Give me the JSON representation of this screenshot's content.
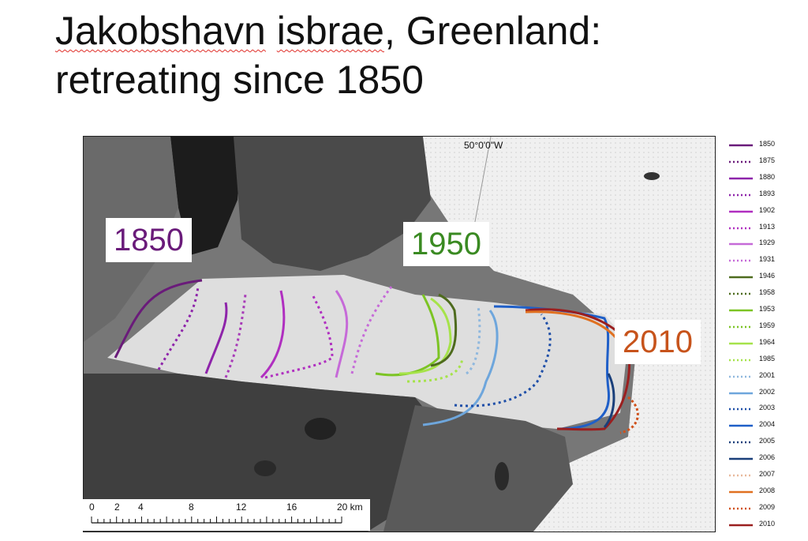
{
  "title": {
    "word1": "Jakobshavn",
    "word2": "isbrae",
    "rest_line1": ", Greenland:",
    "line2": "retreating since 1850"
  },
  "map": {
    "longitude_label": "50°0'0\"W",
    "callouts": {
      "y1850": "1850",
      "y1950": "1950",
      "y2010": "2010"
    },
    "scale_bar": {
      "labels": [
        "0",
        "2",
        "4",
        "8",
        "12",
        "16",
        "20 km"
      ]
    }
  },
  "legend": [
    {
      "year": "1850",
      "color": "#6a1b7a",
      "style": "solid"
    },
    {
      "year": "1875",
      "color": "#6a1b7a",
      "style": "dotted"
    },
    {
      "year": "1880",
      "color": "#8e24aa",
      "style": "solid"
    },
    {
      "year": "1893",
      "color": "#8e24aa",
      "style": "dotted"
    },
    {
      "year": "1902",
      "color": "#b02fc0",
      "style": "solid"
    },
    {
      "year": "1913",
      "color": "#b02fc0",
      "style": "dotted"
    },
    {
      "year": "1929",
      "color": "#c66ad8",
      "style": "solid"
    },
    {
      "year": "1931",
      "color": "#c66ad8",
      "style": "dotted"
    },
    {
      "year": "1946",
      "color": "#4e6b1e",
      "style": "solid"
    },
    {
      "year": "1958",
      "color": "#4e6b1e",
      "style": "dotted"
    },
    {
      "year": "1953",
      "color": "#7cc424",
      "style": "solid"
    },
    {
      "year": "1959",
      "color": "#7cc424",
      "style": "dotted"
    },
    {
      "year": "1964",
      "color": "#a6e34a",
      "style": "solid"
    },
    {
      "year": "1985",
      "color": "#a6e34a",
      "style": "dotted"
    },
    {
      "year": "2001",
      "color": "#8fb8de",
      "style": "dotted"
    },
    {
      "year": "2002",
      "color": "#6ea6dc",
      "style": "solid"
    },
    {
      "year": "2003",
      "color": "#1f4fa8",
      "style": "dotted"
    },
    {
      "year": "2004",
      "color": "#1f5fc8",
      "style": "solid"
    },
    {
      "year": "2005",
      "color": "#1a3f7a",
      "style": "dotted"
    },
    {
      "year": "2006",
      "color": "#1a3f7a",
      "style": "solid"
    },
    {
      "year": "2007",
      "color": "#e8b89a",
      "style": "dotted"
    },
    {
      "year": "2008",
      "color": "#e07020",
      "style": "solid"
    },
    {
      "year": "2009",
      "color": "#d0501a",
      "style": "dotted"
    },
    {
      "year": "2010",
      "color": "#9b1f1f",
      "style": "solid"
    }
  ]
}
